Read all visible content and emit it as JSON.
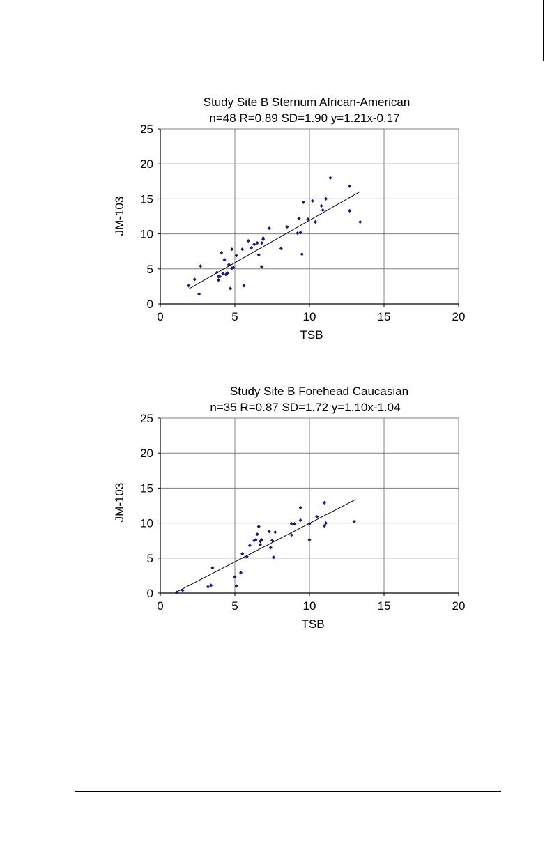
{
  "chart_data": [
    {
      "type": "scatter",
      "title": "Study Site B Sternum African-American",
      "subtitle": "n=48 R=0.89 SD=1.90 y=1.21x-0.17",
      "xlabel": "TSB",
      "ylabel": "JM-103",
      "xlim": [
        0,
        20
      ],
      "ylim": [
        0,
        25
      ],
      "x_ticks": [
        0,
        5,
        10,
        15,
        20
      ],
      "y_ticks": [
        0,
        5,
        10,
        15,
        20,
        25
      ],
      "x_tick_labels": [
        "0",
        "5",
        "10",
        "15",
        "20"
      ],
      "y_tick_labels": [
        "0",
        "5",
        "10",
        "15",
        "20",
        "25"
      ],
      "grid": true,
      "marker_color": "#1a1a7a",
      "trendline": {
        "slope": 1.21,
        "intercept": -0.17,
        "x_range": [
          1.9,
          13.4
        ]
      },
      "points": [
        [
          1.9,
          2.6
        ],
        [
          2.3,
          3.5
        ],
        [
          2.6,
          1.4
        ],
        [
          2.7,
          5.4
        ],
        [
          3.8,
          4.5
        ],
        [
          3.9,
          3.4
        ],
        [
          4.0,
          3.9
        ],
        [
          4.1,
          7.3
        ],
        [
          4.2,
          4.3
        ],
        [
          4.3,
          6.3
        ],
        [
          4.4,
          4.2
        ],
        [
          4.5,
          4.4
        ],
        [
          4.6,
          5.6
        ],
        [
          4.7,
          2.2
        ],
        [
          4.8,
          7.8
        ],
        [
          4.9,
          5.2
        ],
        [
          5.1,
          6.9
        ],
        [
          5.5,
          7.8
        ],
        [
          5.6,
          2.6
        ],
        [
          5.9,
          9.0
        ],
        [
          6.1,
          8.0
        ],
        [
          6.3,
          8.5
        ],
        [
          6.5,
          8.7
        ],
        [
          6.6,
          7.0
        ],
        [
          6.8,
          5.3
        ],
        [
          6.8,
          8.7
        ],
        [
          6.9,
          9.2
        ],
        [
          6.9,
          9.4
        ],
        [
          7.3,
          10.8
        ],
        [
          8.1,
          7.9
        ],
        [
          8.5,
          11.0
        ],
        [
          9.2,
          10.1
        ],
        [
          9.3,
          12.2
        ],
        [
          9.4,
          10.2
        ],
        [
          9.5,
          7.1
        ],
        [
          9.6,
          14.5
        ],
        [
          9.9,
          12.1
        ],
        [
          10.2,
          14.7
        ],
        [
          10.4,
          11.7
        ],
        [
          10.8,
          14.0
        ],
        [
          10.9,
          13.4
        ],
        [
          11.1,
          15.0
        ],
        [
          11.4,
          18.0
        ],
        [
          12.7,
          16.8
        ],
        [
          12.7,
          13.3
        ],
        [
          13.4,
          11.7
        ],
        [
          4.8,
          5.1
        ],
        [
          3.9,
          3.9
        ]
      ]
    },
    {
      "type": "scatter",
      "title": "Study Site B Forehead Caucasian",
      "subtitle": "n=35 R=0.87 SD=1.72 y=1.10x-1.04",
      "xlabel": "TSB",
      "ylabel": "JM-103",
      "xlim": [
        0,
        20
      ],
      "ylim": [
        0,
        25
      ],
      "x_ticks": [
        0,
        5,
        10,
        15,
        20
      ],
      "y_ticks": [
        0,
        5,
        10,
        15,
        20,
        25
      ],
      "x_tick_labels": [
        "0",
        "5",
        "10",
        "15",
        "20"
      ],
      "y_tick_labels": [
        "0",
        "5",
        "10",
        "15",
        "20",
        "25"
      ],
      "grid": true,
      "marker_color": "#1a1a7a",
      "trendline": {
        "slope": 1.1,
        "intercept": -1.04,
        "x_range": [
          1.1,
          13.1
        ]
      },
      "points": [
        [
          1.1,
          0.1
        ],
        [
          1.5,
          0.4
        ],
        [
          3.2,
          0.9
        ],
        [
          3.4,
          1.1
        ],
        [
          3.5,
          3.6
        ],
        [
          5.0,
          2.3
        ],
        [
          5.1,
          1.0
        ],
        [
          5.4,
          2.9
        ],
        [
          5.5,
          5.6
        ],
        [
          5.8,
          5.2
        ],
        [
          6.0,
          6.8
        ],
        [
          6.3,
          7.5
        ],
        [
          6.4,
          7.6
        ],
        [
          6.5,
          8.4
        ],
        [
          6.6,
          9.5
        ],
        [
          6.7,
          7.4
        ],
        [
          6.7,
          6.9
        ],
        [
          6.8,
          7.6
        ],
        [
          7.3,
          8.8
        ],
        [
          7.4,
          6.5
        ],
        [
          7.5,
          7.5
        ],
        [
          7.6,
          5.1
        ],
        [
          7.7,
          8.7
        ],
        [
          8.8,
          9.9
        ],
        [
          8.8,
          8.3
        ],
        [
          9.4,
          10.4
        ],
        [
          9.4,
          12.2
        ],
        [
          10.0,
          9.9
        ],
        [
          10.0,
          7.6
        ],
        [
          10.5,
          10.9
        ],
        [
          11.0,
          12.9
        ],
        [
          11.0,
          9.6
        ],
        [
          11.1,
          10.0
        ],
        [
          13.0,
          10.2
        ],
        [
          9.0,
          9.9
        ]
      ]
    }
  ]
}
